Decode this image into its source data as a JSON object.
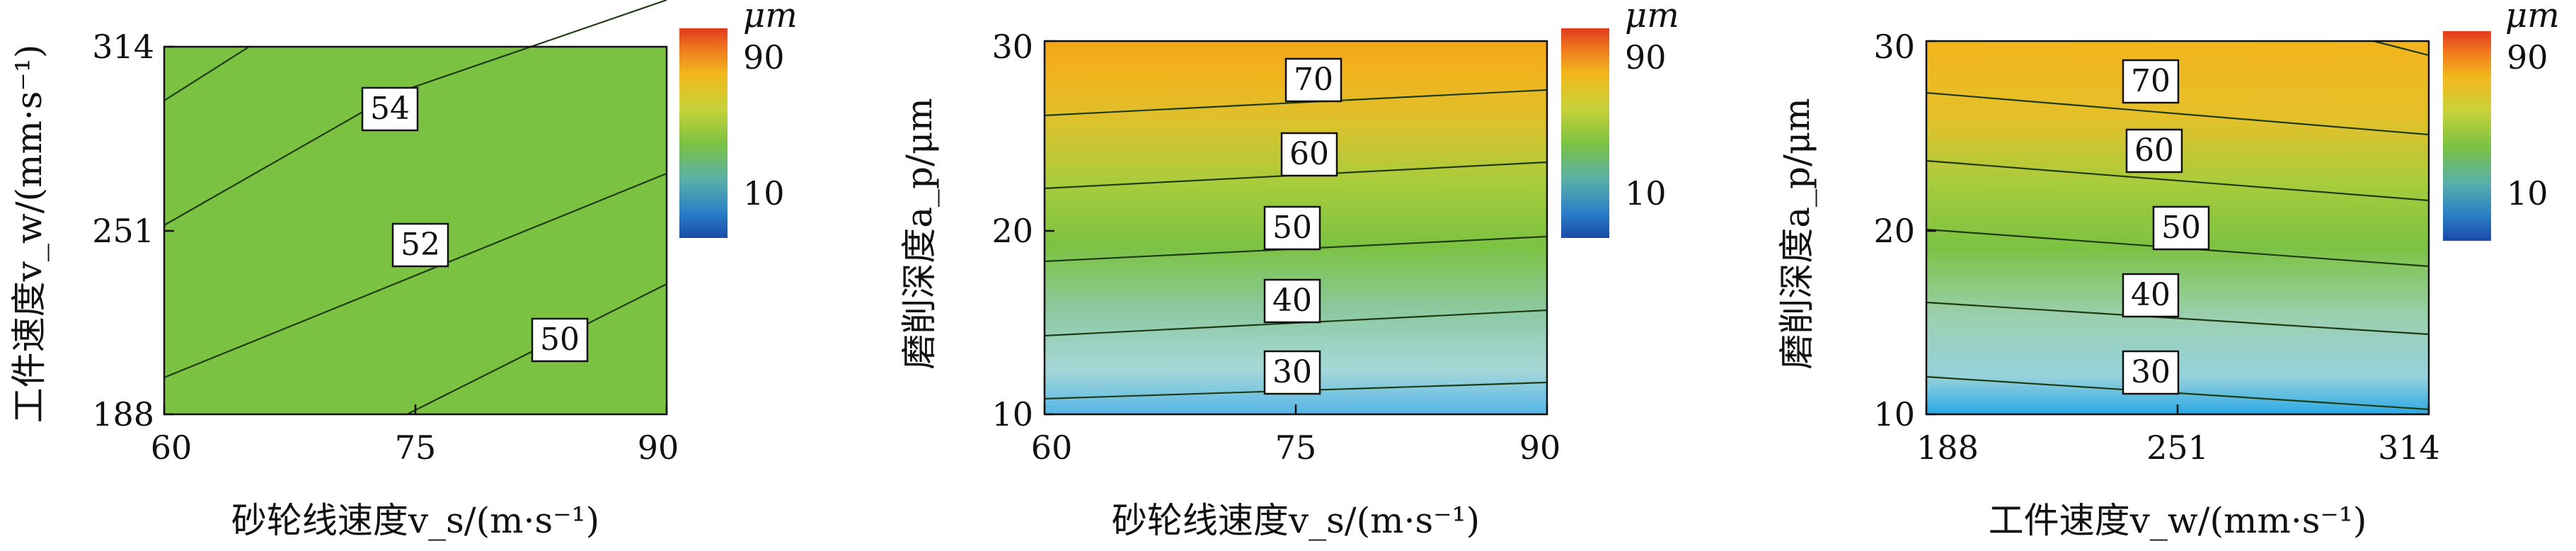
{
  "chart_data": [
    {
      "type": "heatmap",
      "xlabel": "砂轮线速度v_s/(m·s⁻¹)",
      "ylabel": "工件速度v_w/(mm·s⁻¹)",
      "xlim": [
        60,
        90
      ],
      "ylim": [
        188,
        314
      ],
      "xticks": [
        "60",
        "75",
        "90"
      ],
      "yticks": [
        "188",
        "251",
        "314"
      ],
      "contour_labels": [
        {
          "value": "54",
          "x": 74,
          "y": 293
        },
        {
          "value": "52",
          "x": 75,
          "y": 247
        },
        {
          "value": "50",
          "x": 85,
          "y": 211
        }
      ],
      "fill_color": "#7cc242",
      "colorbar": {
        "unit": "μm",
        "ticks": [
          "10",
          "90"
        ],
        "range": [
          0,
          100
        ]
      }
    },
    {
      "type": "heatmap",
      "xlabel": "砂轮线速度v_s/(m·s⁻¹)",
      "ylabel": "磨削深度a_p/μm",
      "xlim": [
        60,
        90
      ],
      "ylim": [
        10,
        30
      ],
      "xticks": [
        "60",
        "75",
        "90"
      ],
      "yticks": [
        "10",
        "20",
        "30"
      ],
      "contour_labels": [
        {
          "value": "70",
          "x": 76,
          "y": 26.8
        },
        {
          "value": "60",
          "x": 76,
          "y": 23.2
        },
        {
          "value": "50",
          "x": 75,
          "y": 19.0
        },
        {
          "value": "40",
          "x": 75,
          "y": 15.0
        },
        {
          "value": "30",
          "x": 75,
          "y": 12.6
        }
      ],
      "colorbar": {
        "unit": "μm",
        "ticks": [
          "10",
          "90"
        ],
        "range": [
          0,
          100
        ]
      }
    },
    {
      "type": "heatmap",
      "xlabel": "工件速度v_w/(mm·s⁻¹)",
      "ylabel": "磨削深度a_p/μm",
      "xlim": [
        188,
        314
      ],
      "ylim": [
        10,
        30
      ],
      "xticks": [
        "188",
        "251",
        "314"
      ],
      "yticks": [
        "10",
        "20",
        "30"
      ],
      "contour_labels": [
        {
          "value": "70",
          "x": 261,
          "y": 27.1
        },
        {
          "value": "60",
          "x": 262,
          "y": 23.2
        },
        {
          "value": "50",
          "x": 267,
          "y": 19.0
        },
        {
          "value": "40",
          "x": 261,
          "y": 15.3
        },
        {
          "value": "30",
          "x": 261,
          "y": 11.3
        }
      ],
      "colorbar": {
        "unit": "μm",
        "ticks": [
          "10",
          "90"
        ],
        "range": [
          0,
          100
        ]
      }
    }
  ]
}
